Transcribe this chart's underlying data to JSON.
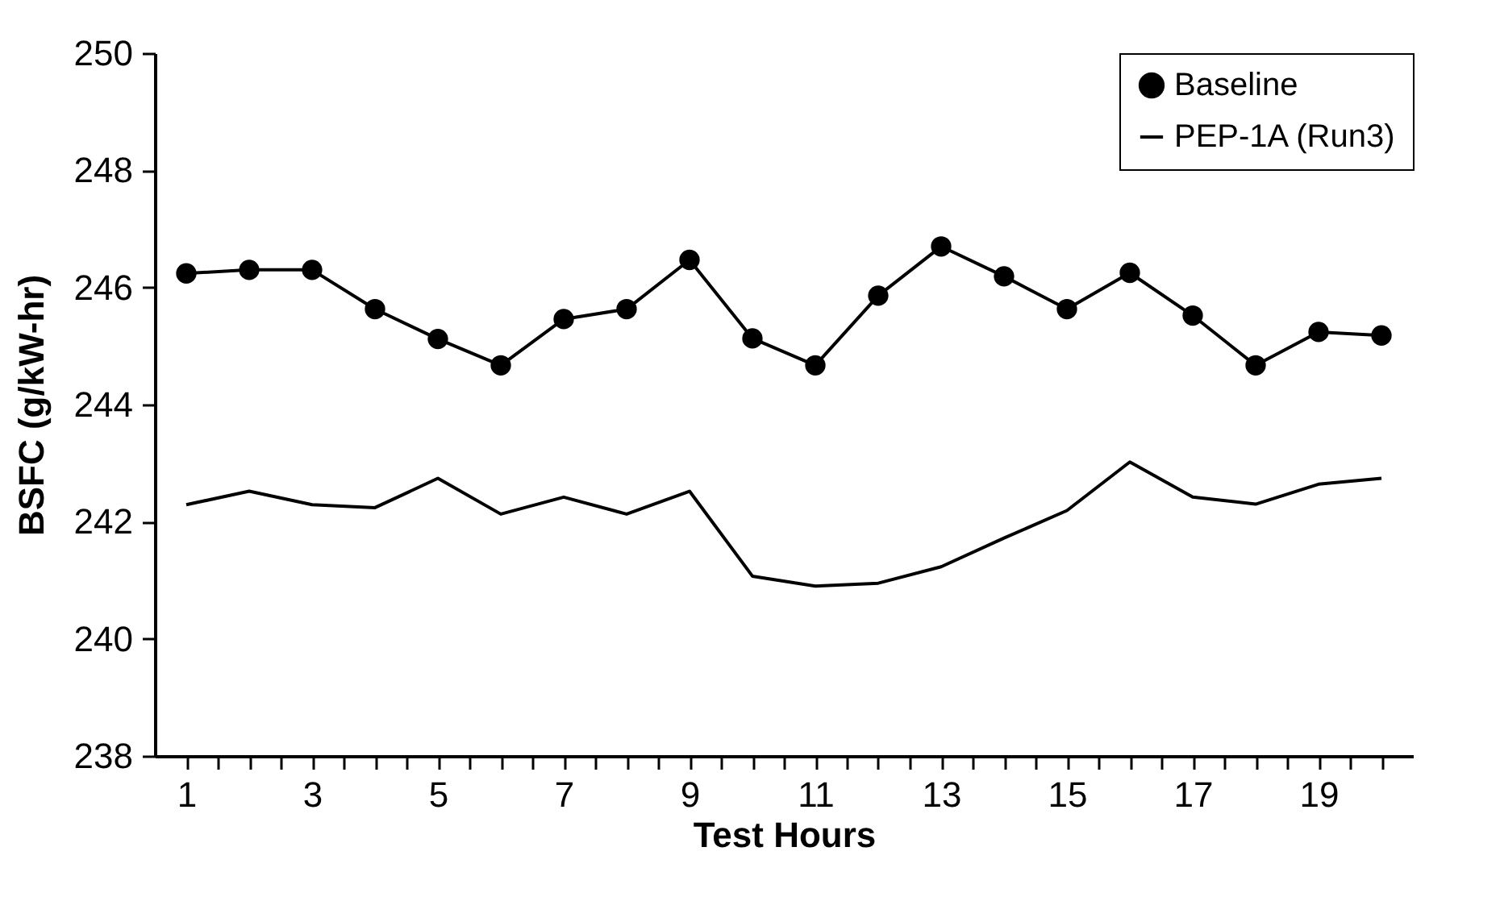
{
  "chart_data": {
    "type": "line",
    "xlabel": "Test Hours",
    "ylabel": "BSFC (g/kW-hr)",
    "x": [
      1,
      2,
      3,
      4,
      5,
      6,
      7,
      8,
      9,
      10,
      11,
      12,
      13,
      14,
      15,
      16,
      17,
      18,
      19,
      20
    ],
    "series": [
      {
        "name": "Baseline",
        "color": "#000000",
        "marker": "circle",
        "values": [
          246.24,
          246.3,
          246.3,
          245.63,
          245.12,
          244.67,
          245.46,
          245.63,
          246.47,
          245.13,
          244.67,
          245.86,
          246.7,
          246.19,
          245.63,
          246.25,
          245.52,
          244.67,
          245.24,
          245.18
        ]
      },
      {
        "name": "PEP-1A (Run3)",
        "color": "#000000",
        "values": [
          242.29,
          242.52,
          242.29,
          242.24,
          242.74,
          242.13,
          242.42,
          242.13,
          242.52,
          241.07,
          240.9,
          240.95,
          241.23,
          241.72,
          242.19,
          243.02,
          242.42,
          242.3,
          242.64,
          242.74
        ]
      }
    ],
    "xlim": [
      0.5,
      20.5
    ],
    "xticks": [
      1,
      {
        "value": 1.5,
        "label": null
      },
      {
        "value": 2,
        "label": null
      },
      {
        "value": 2.5,
        "label": null
      },
      3,
      {
        "value": 3.5,
        "label": null
      },
      {
        "value": 4,
        "label": null
      },
      {
        "value": 4.5,
        "label": null
      },
      5,
      {
        "value": 5.5,
        "label": null
      },
      {
        "value": 6,
        "label": null
      },
      {
        "value": 6.5,
        "label": null
      },
      7,
      {
        "value": 7.5,
        "label": null
      },
      {
        "value": 8,
        "label": null
      },
      {
        "value": 8.5,
        "label": null
      },
      9,
      {
        "value": 9.5,
        "label": null
      },
      {
        "value": 10,
        "label": null
      },
      {
        "value": 10.5,
        "label": null
      },
      11,
      {
        "value": 11.5,
        "label": null
      },
      {
        "value": 12,
        "label": null
      },
      {
        "value": 12.5,
        "label": null
      },
      13,
      {
        "value": 13.5,
        "label": null
      },
      {
        "value": 14,
        "label": null
      },
      {
        "value": 14.5,
        "label": null
      },
      15,
      {
        "value": 15.5,
        "label": null
      },
      {
        "value": 16,
        "label": null
      },
      {
        "value": 16.5,
        "label": null
      },
      17,
      {
        "value": 17.5,
        "label": null
      },
      {
        "value": 18,
        "label": null
      },
      {
        "value": 18.5,
        "label": null
      },
      19,
      {
        "value": 19.5,
        "label": null
      },
      {
        "value": 20,
        "label": null
      }
    ],
    "ylim": [
      238,
      250
    ],
    "yticks": [
      238,
      240,
      242,
      244,
      246,
      248,
      250
    ],
    "grid": false,
    "legend": "top right",
    "line_style": "solid"
  }
}
